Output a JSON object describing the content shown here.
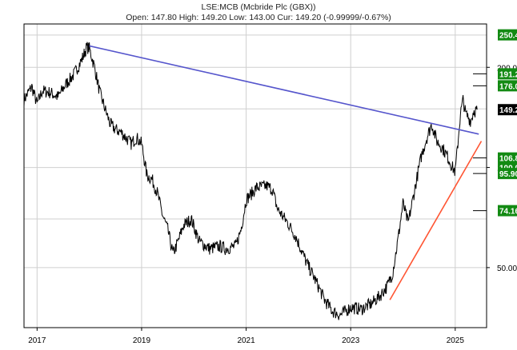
{
  "header": {
    "title": "LSE:MCB (Mcbride Plc (GBX))",
    "subtitle": "Open: 147.80 High: 149.20 Low: 143.00 Cur: 149.20 (-0.99999/-0.67%)"
  },
  "chart_data": {
    "type": "line",
    "title": "LSE:MCB (Mcbride Plc (GBX))",
    "subtitle": "Open: 147.80 High: 149.20 Low: 143.00 Cur: 149.20 (-0.99999/-0.67%)",
    "scale": "log",
    "grid": true,
    "ylim": [
      33,
      270
    ],
    "xlim": [
      2016.75,
      2025.6
    ],
    "x_ticks": [
      {
        "v": 2017,
        "label": "2017"
      },
      {
        "v": 2019,
        "label": "2019"
      },
      {
        "v": 2021,
        "label": "2021"
      },
      {
        "v": 2023,
        "label": "2023"
      },
      {
        "v": 2025,
        "label": "2025"
      }
    ],
    "y_ticks": [
      {
        "v": 200,
        "label": "200.0"
      },
      {
        "v": 100,
        "label": "100.0"
      },
      {
        "v": 50,
        "label": "50.00"
      }
    ],
    "price_badges": [
      {
        "value": 250.4,
        "label": "250.4",
        "style": "green"
      },
      {
        "value": 191.2,
        "label": "191.2",
        "style": "green"
      },
      {
        "value": 176.0,
        "label": "176.0",
        "style": "green"
      },
      {
        "value": 149.2,
        "label": "149.2",
        "style": "black"
      },
      {
        "value": 106.8,
        "label": "106.8",
        "style": "green"
      },
      {
        "value": 100.0,
        "label": "100.0",
        "style": "green"
      },
      {
        "value": 95.9,
        "label": "95.90",
        "style": "green"
      },
      {
        "value": 74.16,
        "label": "74.16",
        "style": "green"
      }
    ],
    "target_markers": [
      191.2,
      176.0,
      106.8,
      95.9,
      74.16
    ],
    "trendlines": [
      {
        "color": "#5555cc",
        "from": [
          2018.0,
          232
        ],
        "to": [
          2025.45,
          126
        ]
      },
      {
        "color": "#ff5533",
        "from": [
          2023.75,
          40
        ],
        "to": [
          2025.5,
          120
        ]
      }
    ],
    "series": [
      {
        "color": "#000000",
        "points": [
          [
            2016.75,
            160
          ],
          [
            2016.9,
            175
          ],
          [
            2017.0,
            155
          ],
          [
            2017.1,
            170
          ],
          [
            2017.25,
            168
          ],
          [
            2017.4,
            163
          ],
          [
            2017.55,
            178
          ],
          [
            2017.7,
            190
          ],
          [
            2017.85,
            210
          ],
          [
            2017.95,
            230
          ],
          [
            2018.0,
            228
          ],
          [
            2018.1,
            200
          ],
          [
            2018.2,
            168
          ],
          [
            2018.3,
            150
          ],
          [
            2018.4,
            135
          ],
          [
            2018.5,
            130
          ],
          [
            2018.6,
            128
          ],
          [
            2018.7,
            123
          ],
          [
            2018.8,
            118
          ],
          [
            2018.9,
            123
          ],
          [
            2019.0,
            118
          ],
          [
            2019.1,
            95
          ],
          [
            2019.2,
            92
          ],
          [
            2019.3,
            84
          ],
          [
            2019.4,
            72
          ],
          [
            2019.5,
            65
          ],
          [
            2019.6,
            55
          ],
          [
            2019.7,
            60
          ],
          [
            2019.8,
            67
          ],
          [
            2019.95,
            70
          ],
          [
            2020.1,
            60
          ],
          [
            2020.3,
            57
          ],
          [
            2020.5,
            58
          ],
          [
            2020.6,
            57
          ],
          [
            2020.8,
            58
          ],
          [
            2020.9,
            65
          ],
          [
            2021.0,
            80
          ],
          [
            2021.2,
            87
          ],
          [
            2021.4,
            88
          ],
          [
            2021.5,
            86
          ],
          [
            2021.6,
            75
          ],
          [
            2021.8,
            68
          ],
          [
            2021.95,
            62
          ],
          [
            2022.15,
            52
          ],
          [
            2022.35,
            45
          ],
          [
            2022.5,
            40
          ],
          [
            2022.65,
            37
          ],
          [
            2022.8,
            36
          ],
          [
            2023.0,
            38
          ],
          [
            2023.2,
            37.5
          ],
          [
            2023.4,
            39
          ],
          [
            2023.55,
            41
          ],
          [
            2023.7,
            44
          ],
          [
            2023.8,
            48
          ],
          [
            2023.9,
            60
          ],
          [
            2024.0,
            78
          ],
          [
            2024.1,
            68
          ],
          [
            2024.25,
            90
          ],
          [
            2024.35,
            108
          ],
          [
            2024.45,
            122
          ],
          [
            2024.55,
            135
          ],
          [
            2024.65,
            120
          ],
          [
            2024.75,
            115
          ],
          [
            2024.85,
            108
          ],
          [
            2024.95,
            100
          ],
          [
            2025.0,
            97
          ],
          [
            2025.05,
            118
          ],
          [
            2025.1,
            145
          ],
          [
            2025.15,
            160
          ],
          [
            2025.2,
            145
          ],
          [
            2025.3,
            138
          ],
          [
            2025.35,
            148
          ],
          [
            2025.42,
            149.2
          ]
        ]
      }
    ]
  }
}
